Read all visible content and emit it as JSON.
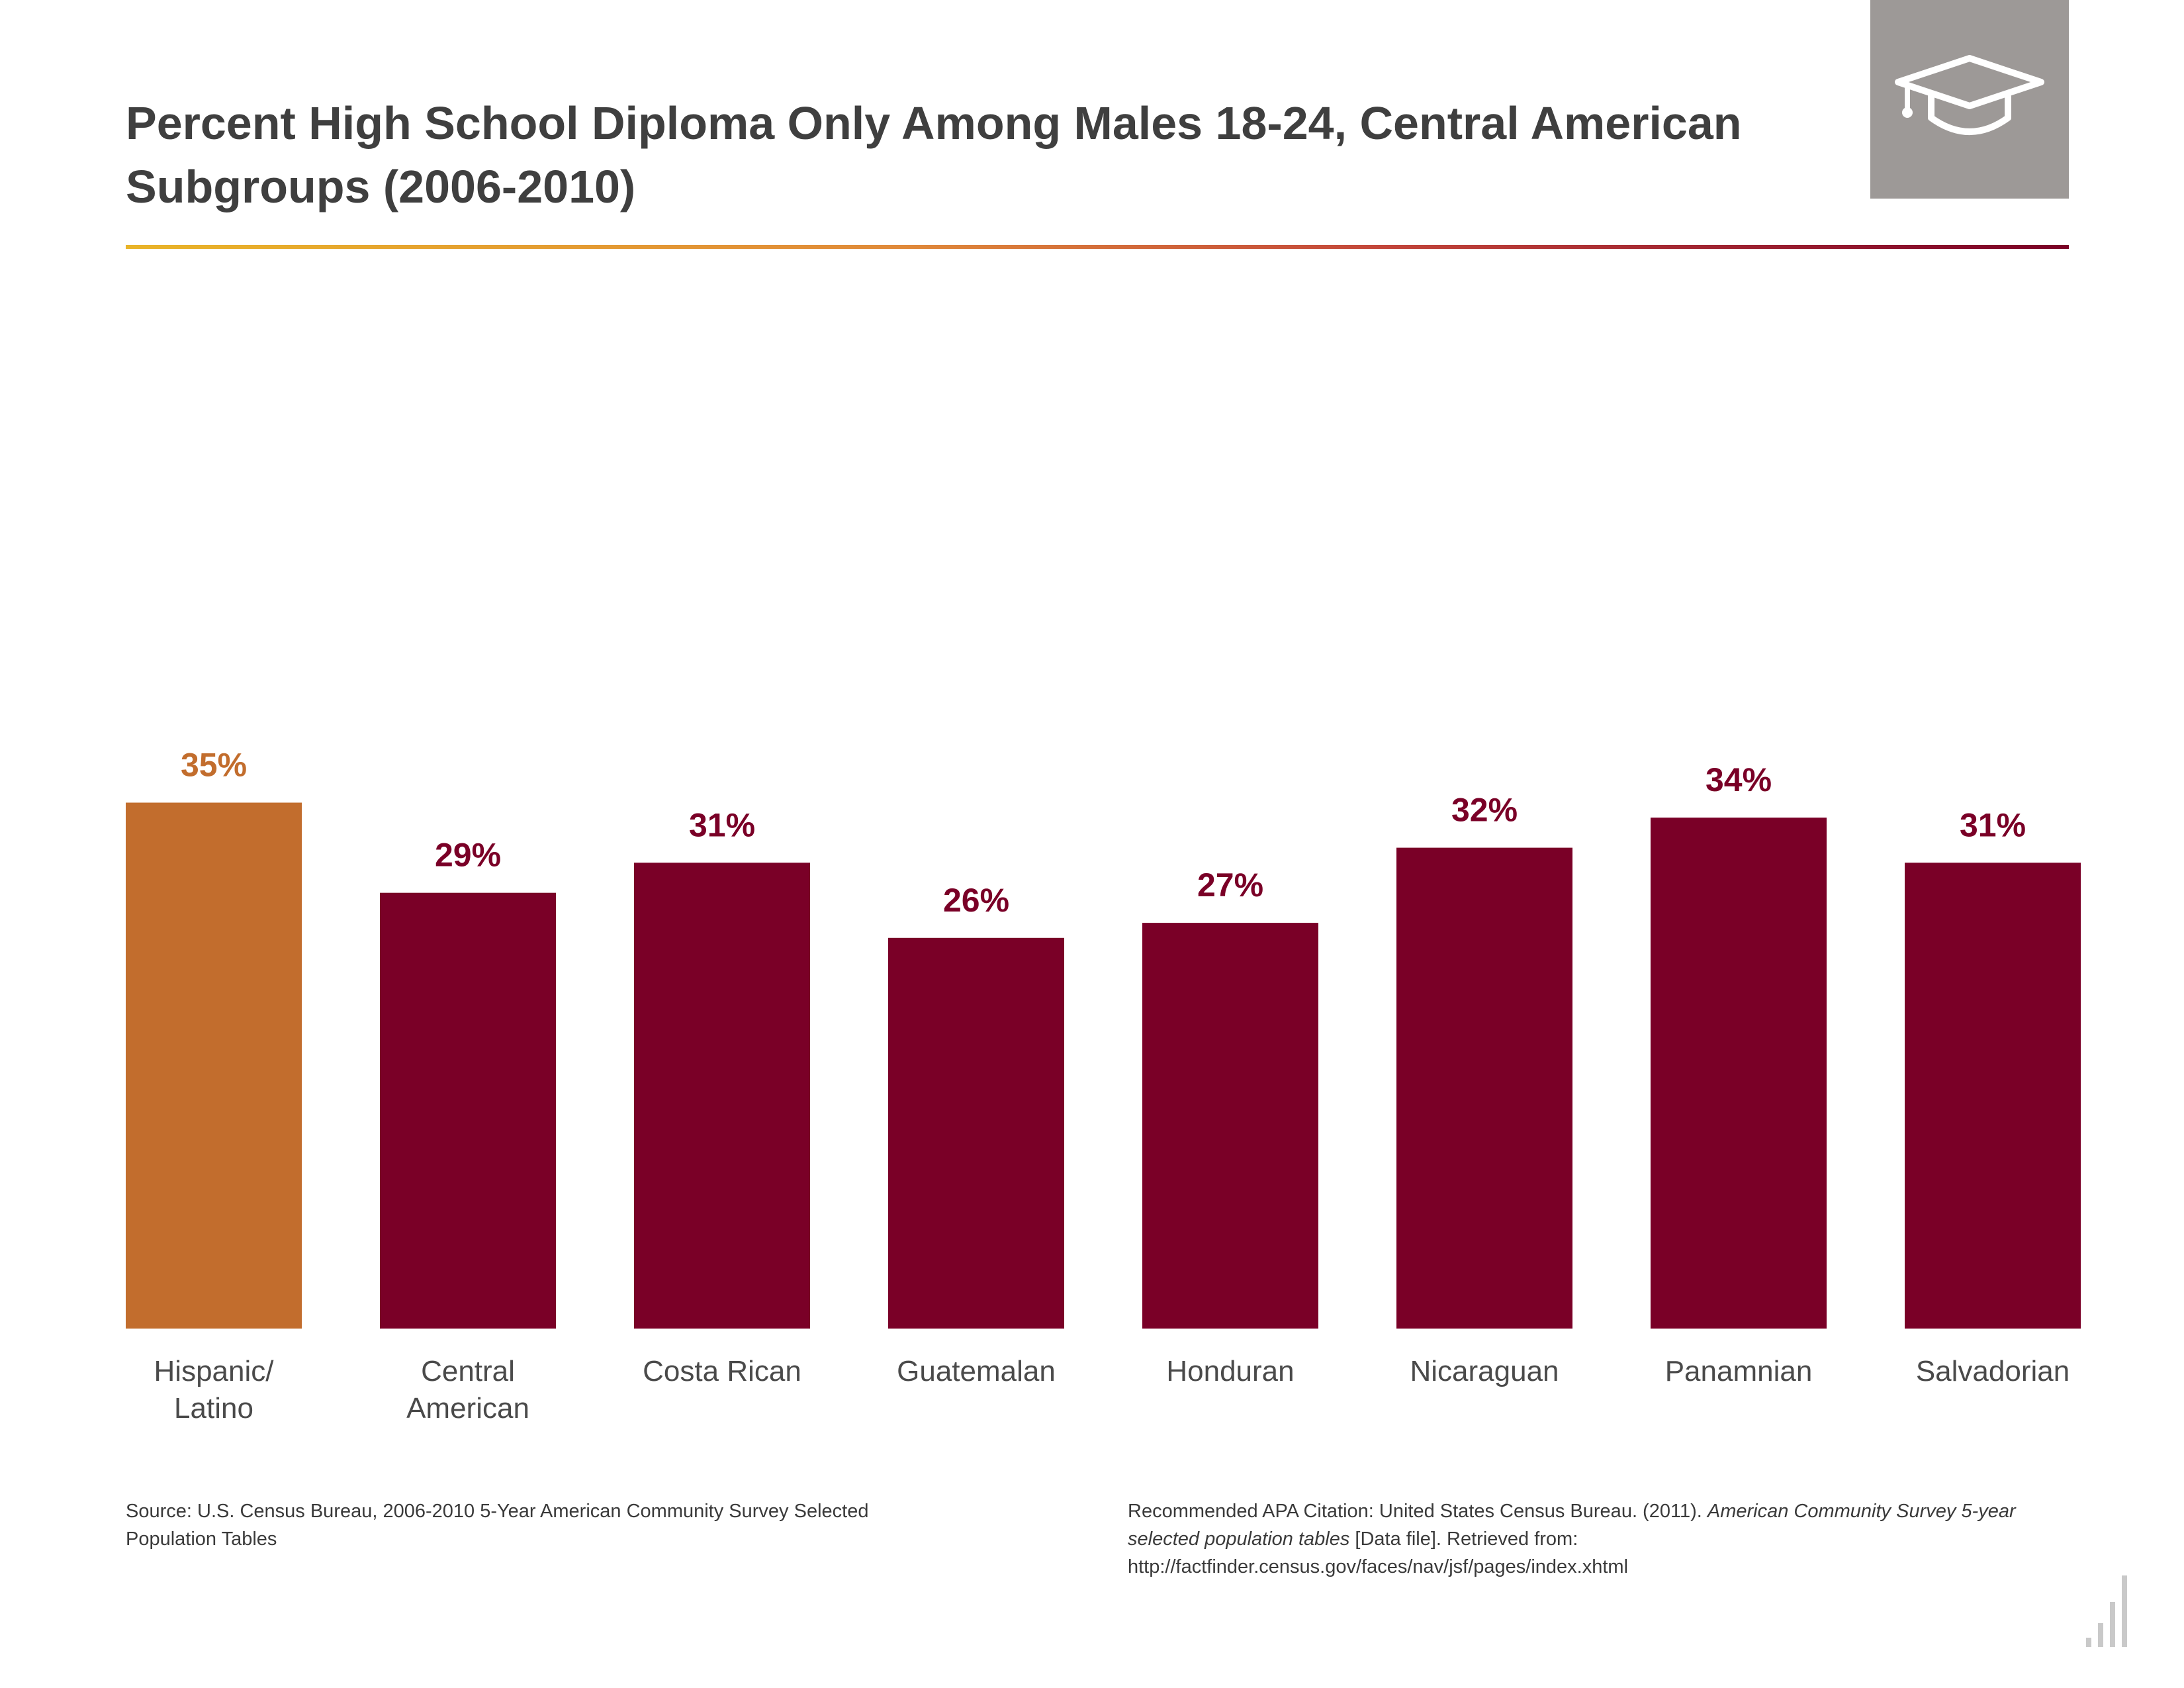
{
  "title": "Percent High School Diploma Only Among Males 18-24, Central American Subgroups (2006-2010)",
  "header_icon": "graduation-cap-icon",
  "chart_data": {
    "type": "bar",
    "title": "Percent High School Diploma Only Among Males 18-24, Central American Subgroups (2006-2010)",
    "categories": [
      [
        "Hispanic/",
        "Latino"
      ],
      [
        "Central",
        "American"
      ],
      [
        "Costa Rican"
      ],
      [
        "Guatemalan"
      ],
      [
        "Honduran"
      ],
      [
        "Nicaraguan"
      ],
      [
        "Panamnian"
      ],
      [
        "Salvadorian"
      ]
    ],
    "values": [
      35,
      29,
      31,
      26,
      27,
      32,
      34,
      31
    ],
    "value_labels": [
      "35%",
      "29%",
      "31%",
      "26%",
      "27%",
      "32%",
      "34%",
      "31%"
    ],
    "colors": [
      "#c26d2d",
      "#7a0027",
      "#7a0027",
      "#7a0027",
      "#7a0027",
      "#7a0027",
      "#7a0027",
      "#7a0027"
    ],
    "ylim": [
      0,
      35
    ],
    "grid": false,
    "legend": "none"
  },
  "footer": {
    "source": "Source: U.S. Census Bureau, 2006-2010 5-Year American Community Survey Selected Population Tables",
    "citation_prefix": "Recommended APA Citation: United States Census Bureau. (2011). ",
    "citation_italic": "American Community Survey 5-year selected population tables",
    "citation_suffix": " [Data file]. Retrieved from: http://factfinder.census.gov/faces/nav/jsf/pages/index.xhtml"
  },
  "corner_icon": "bar-graph-logo-icon"
}
